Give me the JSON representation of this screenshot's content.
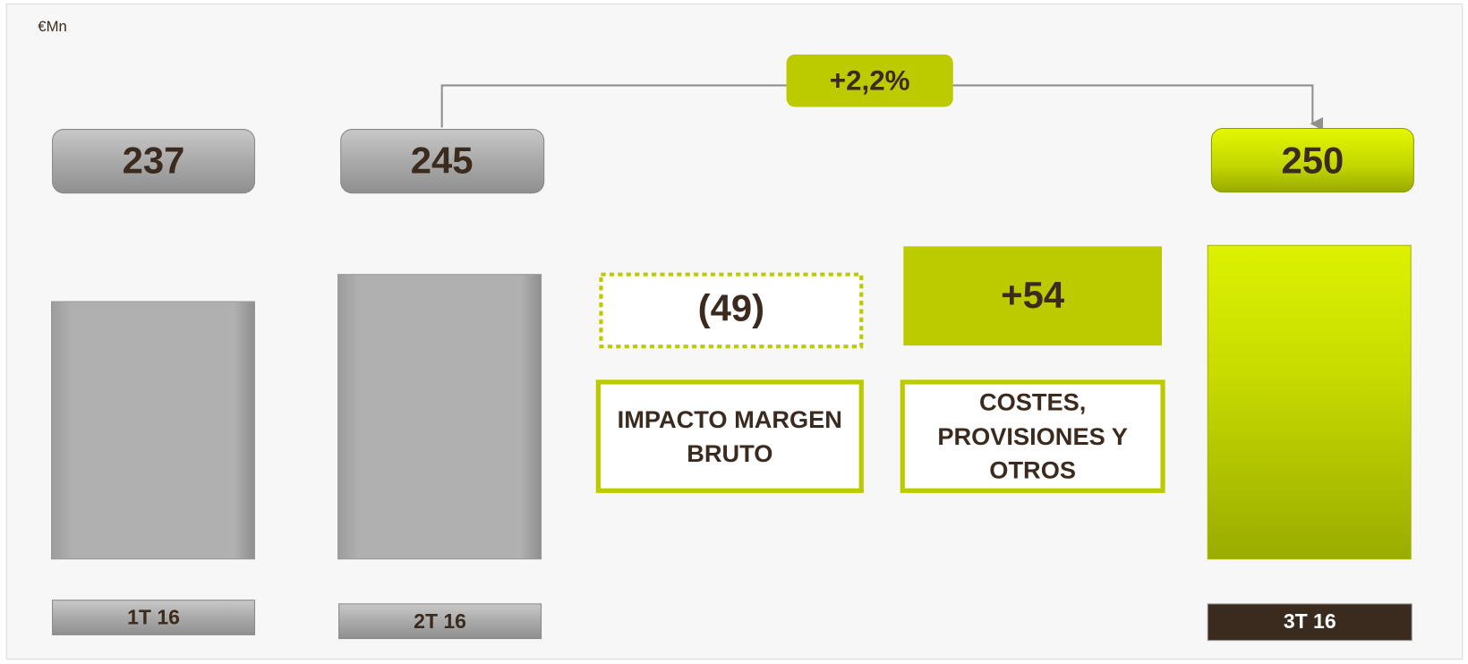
{
  "unit": "€Mn",
  "change": "+2,2%",
  "bars": [
    {
      "label": "1T 16",
      "value": 237
    },
    {
      "label": "2T 16",
      "value": 245
    },
    {
      "label": "3T 16",
      "value": 250
    }
  ],
  "steps": [
    {
      "label": "IMPACTO MARGEN BRUTO",
      "value": "(49)"
    },
    {
      "label": "COSTES, PROVISIONES Y OTROS",
      "value": "+54"
    }
  ]
}
